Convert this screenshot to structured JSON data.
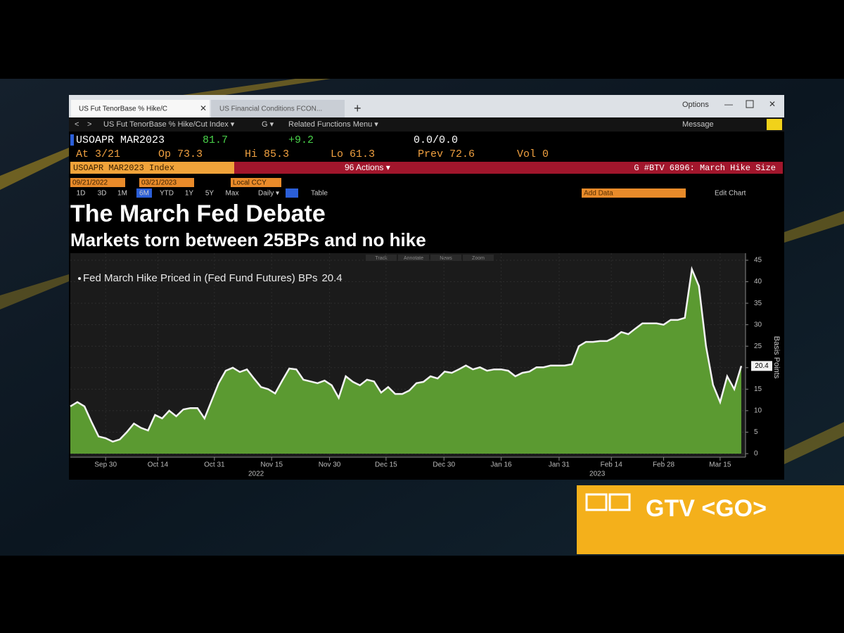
{
  "tabs": [
    "US Fut TenorBase % Hike/C",
    "US Financial Conditions FCON..."
  ],
  "window": {
    "options": "Options"
  },
  "toolbar": {
    "security": "US Fut TenorBase % Hike/Cut Index ▾",
    "g": "G ▾",
    "related": "Related Functions Menu ▾",
    "message": "Message"
  },
  "quote": {
    "ticker": "USOAPR MAR2023",
    "last": "81.7",
    "change": "+9.2",
    "bid_ask": "0.0/0.0",
    "at": "At 3/21",
    "open": "Op 73.3",
    "high": "Hi 85.3",
    "low": "Lo 61.3",
    "prev": "Prev 72.6",
    "volume": "Vol 0"
  },
  "action_bar": {
    "security": "USOAPR MAR2023 Index",
    "actions": "96 Actions ▾",
    "story": "G #BTV 6896: March Hike Size"
  },
  "controls": {
    "start_date": "09/21/2022",
    "end_date": "03/21/2023",
    "currency": "Local CCY",
    "periods": [
      "1D",
      "3D",
      "1M",
      "6M",
      "YTD",
      "1Y",
      "5Y",
      "Max"
    ],
    "frequency": "Daily ▾",
    "table": "Table",
    "add_data": "Add Data",
    "edit_chart": "Edit Chart"
  },
  "chart_tabs": [
    "Track",
    "Annotate",
    "News",
    "Zoom"
  ],
  "chart_data": {
    "type": "area",
    "title": "The March Fed Debate",
    "subtitle": "Markets torn between 25BPs and no hike",
    "series": [
      {
        "name": "Fed March Hike Priced in (Fed Fund Futures) BPs",
        "color": "#5b9a31",
        "line_color": "#f2f2f2",
        "values": [
          11,
          12,
          11,
          7.4,
          4,
          3.6,
          2.8,
          3.3,
          5,
          7,
          6,
          5.4,
          9,
          8.2,
          10,
          8.7,
          10.3,
          10.6,
          10.6,
          8.2,
          12.3,
          16.4,
          19.3,
          20,
          19,
          19.6,
          17.5,
          15.5,
          15,
          14,
          17,
          19.8,
          19.6,
          17.2,
          16.8,
          16.4,
          17,
          15.9,
          13,
          18,
          16.7,
          15.9,
          17.2,
          16.8,
          14.2,
          15.5,
          13.9,
          13.9,
          14.7,
          16.4,
          16.7,
          18,
          17.5,
          19.1,
          18.8,
          19.6,
          20.5,
          19.6,
          20.1,
          19.3,
          19.6,
          19.6,
          19.3,
          18,
          18.8,
          19.1,
          20.1,
          20.1,
          20.5,
          20.5,
          20.5,
          20.8,
          25,
          26,
          26,
          26.2,
          26.2,
          27,
          28.3,
          27.8,
          29.1,
          30.3,
          30.3,
          30.3,
          30,
          31.1,
          31.1,
          31.6,
          42.9,
          39,
          25,
          16,
          12,
          18,
          15,
          20.4
        ]
      }
    ],
    "xlim": [
      0,
      95
    ],
    "xticks": [
      {
        "value": 5,
        "label": "Sep 30"
      },
      {
        "value": 12.4,
        "label": "Oct 14"
      },
      {
        "value": 20.4,
        "label": "Oct 31"
      },
      {
        "value": 28.5,
        "label": "Nov 15"
      },
      {
        "value": 36.7,
        "label": "Nov 30"
      },
      {
        "value": 44.7,
        "label": "Dec 15"
      },
      {
        "value": 52.9,
        "label": "Dec 30"
      },
      {
        "value": 61,
        "label": "Jan 16"
      },
      {
        "value": 69.2,
        "label": "Jan 31"
      },
      {
        "value": 76.6,
        "label": "Feb 14"
      },
      {
        "value": 84,
        "label": "Feb 28"
      },
      {
        "value": 92,
        "label": "Mar 15"
      }
    ],
    "year_labels": [
      {
        "value": 26.3,
        "label": "2022"
      },
      {
        "value": 74.6,
        "label": "2023"
      }
    ],
    "ylim": [
      0,
      45
    ],
    "yticks": [
      0,
      5,
      10,
      15,
      20,
      25,
      30,
      35,
      40,
      45
    ],
    "y_label": "Basis Points",
    "grid": true
  },
  "banner": "GTV <GO>"
}
